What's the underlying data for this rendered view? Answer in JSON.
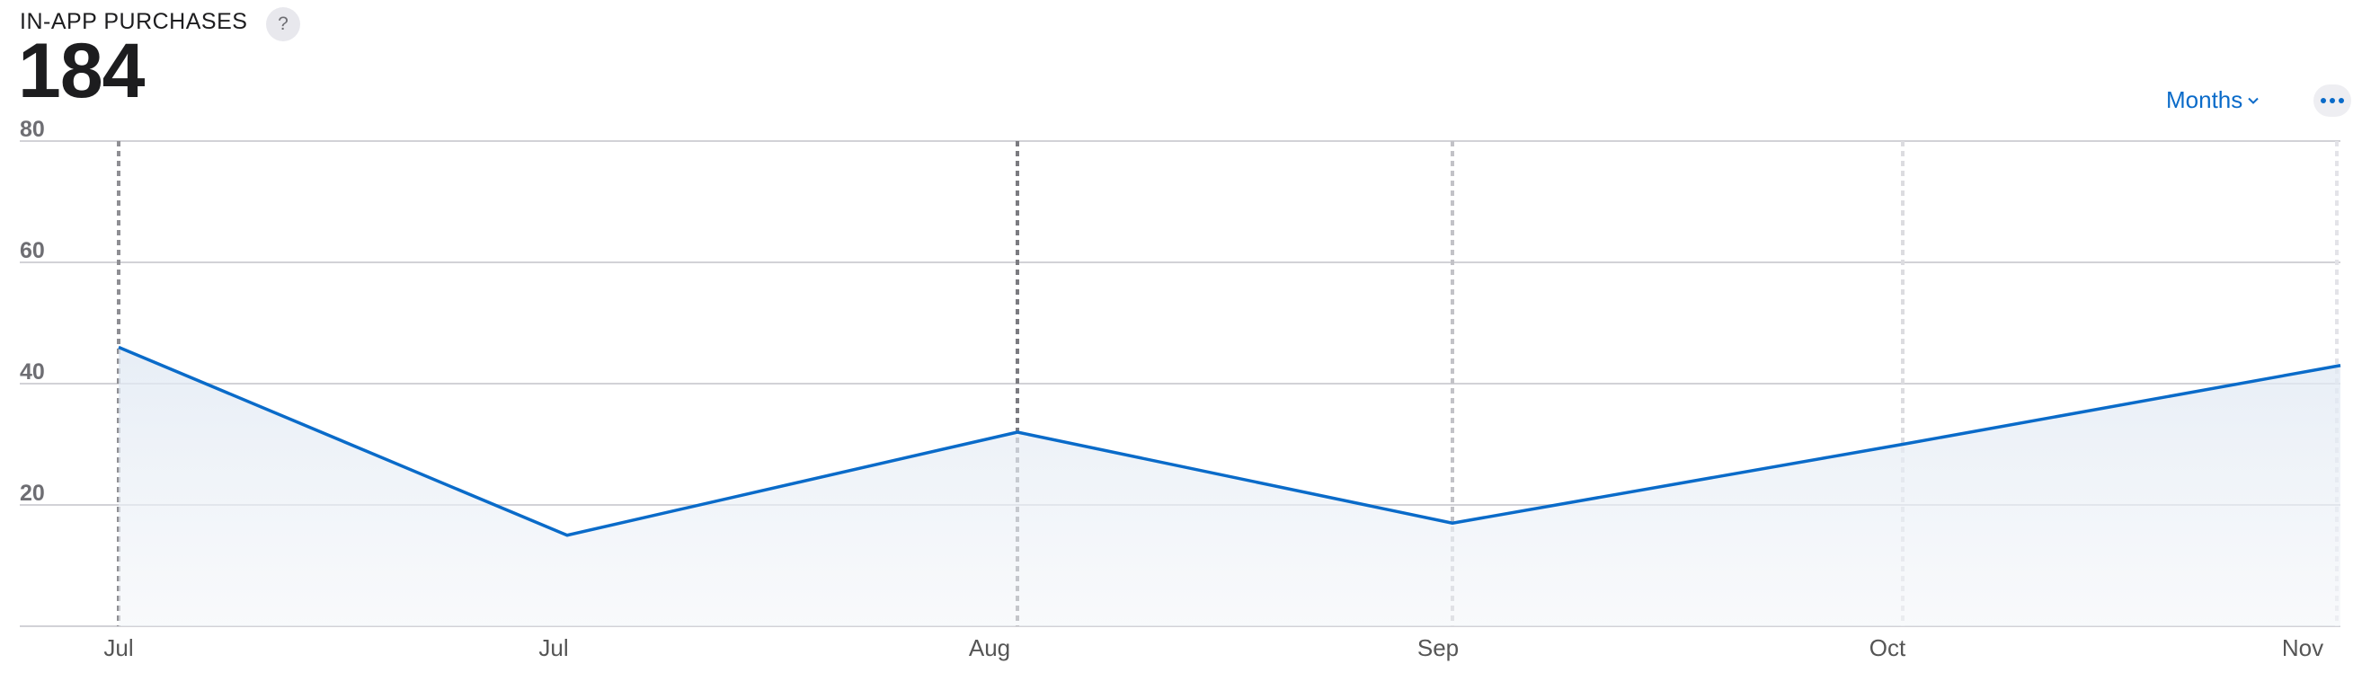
{
  "header": {
    "title": "IN-APP PURCHASES",
    "help_label": "?",
    "total": "184"
  },
  "controls": {
    "period_label": "Months"
  },
  "colors": {
    "line": "#0a6bc9",
    "grid": "#d2d2d7",
    "accent": "#0a6bc9"
  },
  "chart_data": {
    "type": "area",
    "title": "IN-APP PURCHASES",
    "xlabel": "",
    "ylabel": "",
    "ylim": [
      0,
      80
    ],
    "yticks": [
      20,
      40,
      60,
      80
    ],
    "grid": true,
    "x_tick_labels": [
      "Jul",
      "Jul",
      "Aug",
      "Sep",
      "Oct",
      "Nov"
    ],
    "series": [
      {
        "values": [
          46,
          15,
          32,
          17,
          30,
          43
        ]
      }
    ]
  }
}
